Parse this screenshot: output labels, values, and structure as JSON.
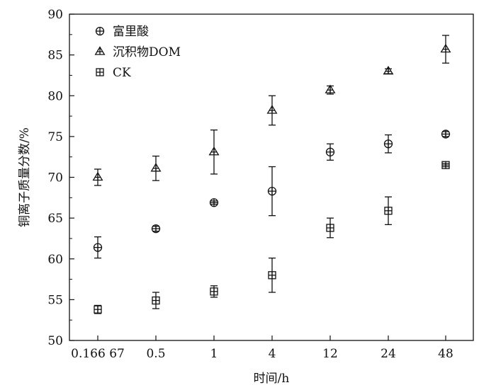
{
  "chart_data": {
    "type": "scatter",
    "xlabel": "时间/h",
    "ylabel": "铜离子质量分数/%",
    "ylim": [
      50,
      90
    ],
    "yticks": [
      50,
      55,
      60,
      65,
      70,
      75,
      80,
      85,
      90
    ],
    "categories": [
      "0.166 67",
      "0.5",
      "1",
      "4",
      "12",
      "24",
      "48"
    ],
    "grid": false,
    "legend_position": "top-left",
    "series": [
      {
        "name": "富里酸",
        "marker": "circle-plus",
        "values": [
          61.4,
          63.7,
          66.9,
          68.3,
          73.1,
          74.1,
          75.3
        ],
        "errors": [
          1.3,
          0.3,
          0.2,
          3.0,
          1.0,
          1.1,
          0.3
        ]
      },
      {
        "name": "沉积物DOM",
        "marker": "triangle-line",
        "values": [
          70.0,
          71.1,
          73.1,
          78.2,
          80.7,
          83.0,
          85.7
        ],
        "errors": [
          1.0,
          1.5,
          2.7,
          1.8,
          0.5,
          0.3,
          1.7
        ]
      },
      {
        "name": "CK",
        "marker": "square-plus",
        "values": [
          53.8,
          54.9,
          56.0,
          58.0,
          63.8,
          65.9,
          71.5
        ],
        "errors": [
          0.5,
          1.0,
          0.7,
          2.1,
          1.2,
          1.7,
          0.2
        ]
      }
    ]
  }
}
